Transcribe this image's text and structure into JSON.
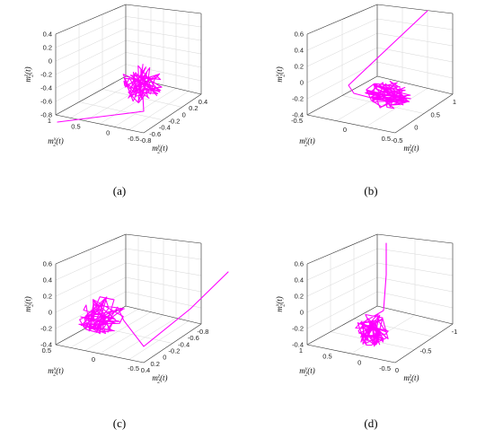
{
  "chart_data": [
    {
      "type": "line",
      "caption": "(a)",
      "series_color": "#ff00ff",
      "zlabel": "m_2^z(t)",
      "xlabel": "m_2^x(t)",
      "ylabel": "m_2^y(t)",
      "zlim": [
        -0.8,
        0.4
      ],
      "z_ticks": [
        "0.4",
        "0.2",
        "0",
        "-0.2",
        "-0.4",
        "-0.6",
        "-0.8"
      ],
      "x_ticks": [
        "1",
        "0.5",
        "0",
        "-0.5"
      ],
      "y_ticks": [
        "-0.8",
        "-0.6",
        "-0.4",
        "-0.2",
        "0",
        "0.2",
        "0.4"
      ],
      "grid": true
    },
    {
      "type": "line",
      "caption": "(b)",
      "series_color": "#ff00ff",
      "zlabel": "m_2^x(t)",
      "xlabel": "m_2^y(t)",
      "ylabel": "m_2^z(t)",
      "zlim": [
        -0.4,
        0.6
      ],
      "z_ticks": [
        "0.6",
        "0.4",
        "0.2",
        "0",
        "-0.2",
        "-0.4"
      ],
      "x_ticks": [
        "-0.5",
        "0",
        "0.5"
      ],
      "y_ticks": [
        "-0.5",
        "0",
        "0.5",
        "1"
      ],
      "grid": true
    },
    {
      "type": "line",
      "caption": "(c)",
      "series_color": "#ff00ff",
      "zlabel": "m_2^y(t)",
      "xlabel": "m_2^x(t)",
      "ylabel": "m_2^z(t)",
      "zlim": [
        -0.4,
        0.6
      ],
      "z_ticks": [
        "0.6",
        "0.4",
        "0.2",
        "0",
        "-0.2",
        "-0.4"
      ],
      "x_ticks": [
        "0.5",
        "0",
        "-0.5"
      ],
      "y_ticks": [
        "0.4",
        "0.2",
        "0",
        "-0.2",
        "-0.4",
        "-0.6",
        "-0.8"
      ],
      "grid": true
    },
    {
      "type": "line",
      "caption": "(d)",
      "series_color": "#ff00ff",
      "zlabel": "m_2^x(t)",
      "xlabel": "m_2^y(t)",
      "ylabel": "m_2^z(t)",
      "zlim": [
        -0.4,
        0.6
      ],
      "z_ticks": [
        "0.6",
        "0.4",
        "0.2",
        "0",
        "-0.2",
        "-0.4"
      ],
      "x_ticks": [
        "1",
        "0.5",
        "0",
        "-0.5"
      ],
      "y_ticks": [
        "0",
        "-0.5",
        "-1"
      ],
      "grid": true
    }
  ]
}
